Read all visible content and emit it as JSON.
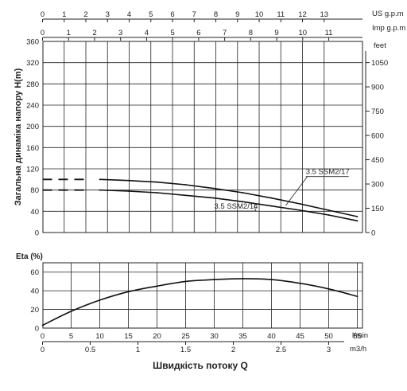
{
  "chart_data": [
    {
      "type": "line",
      "ylabel": "Загальна динаміка напору H(m)",
      "x_unit": "l/min",
      "xlim": [
        0,
        57
      ],
      "ylim": [
        0,
        360
      ],
      "y_ticks": [
        "0",
        "40",
        "80",
        "120",
        "160",
        "200",
        "240",
        "280",
        "320",
        "360"
      ],
      "right_axis": {
        "unit": "feet",
        "ticks": [
          "0",
          "150",
          "300",
          "450",
          "600",
          "750",
          "900",
          "1050"
        ],
        "tick_values_m": [
          0,
          45.72,
          91.44,
          137.16,
          182.88,
          228.6,
          274.32,
          320.04
        ]
      },
      "top_axes": [
        {
          "unit": "US g.p.m",
          "ticks": [
            "0",
            "1",
            "2",
            "3",
            "4",
            "5",
            "6",
            "7",
            "8",
            "9",
            "10",
            "11",
            "12",
            "13"
          ],
          "lpm_per_unit": 3.785
        },
        {
          "unit": "Imp g.p.m",
          "ticks": [
            "0",
            "1",
            "2",
            "3",
            "4",
            "5",
            "6",
            "7",
            "8",
            "9",
            "10",
            "11"
          ],
          "lpm_per_unit": 4.546
        }
      ],
      "grid": true,
      "series": [
        {
          "name": "3.5 SSM2/17",
          "dashed_segment": {
            "x": [
              0,
              7.5
            ],
            "y": [
              100,
              100
            ]
          },
          "x": [
            10,
            15,
            20,
            25,
            30,
            35,
            40,
            45,
            50,
            55
          ],
          "y": [
            100,
            98,
            95,
            90,
            83,
            75,
            65,
            54,
            42,
            30
          ],
          "label_anchor": {
            "x": 46,
            "y": 110
          }
        },
        {
          "name": "3.5 SSM2/14",
          "dashed_segment": {
            "x": [
              0,
              7.5
            ],
            "y": [
              80,
              80
            ]
          },
          "x": [
            10,
            15,
            20,
            25,
            30,
            35,
            40,
            45,
            50,
            55
          ],
          "y": [
            80,
            78,
            75,
            70,
            65,
            58,
            50,
            42,
            33,
            22
          ],
          "label_anchor": {
            "x": 30,
            "y": 45
          }
        }
      ]
    },
    {
      "type": "line",
      "ylabel": "Eta (%)",
      "xlabel": "Швидкість потоку Q",
      "x_unit": "l/min",
      "xlim": [
        0,
        57
      ],
      "ylim": [
        0,
        70
      ],
      "y_ticks": [
        "0",
        "20",
        "40",
        "60"
      ],
      "x_ticks": [
        "0",
        "5",
        "10",
        "15",
        "20",
        "25",
        "30",
        "35",
        "40",
        "45",
        "50",
        "55"
      ],
      "secondary_x_axis": {
        "unit": "m3/h",
        "ticks": [
          "0",
          "0.5",
          "1",
          "1.5",
          "2",
          "2.5",
          "3"
        ],
        "lpm_per_unit": 16.667
      },
      "grid": true,
      "series": [
        {
          "name": "",
          "x": [
            0,
            5,
            10,
            15,
            20,
            25,
            30,
            35,
            40,
            45,
            50,
            55
          ],
          "y": [
            3,
            18,
            30,
            39,
            45,
            50,
            52,
            53,
            52,
            48,
            42,
            34
          ]
        }
      ]
    }
  ]
}
